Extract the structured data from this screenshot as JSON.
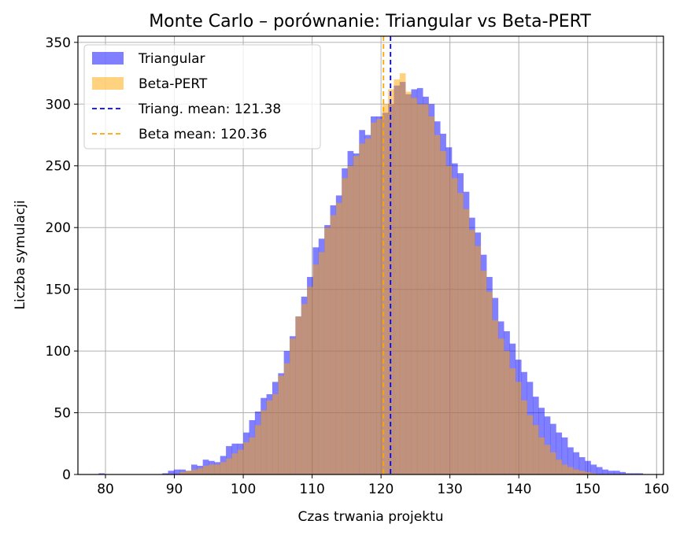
{
  "chart_data": {
    "type": "bar",
    "subtype": "overlaid-histogram",
    "title": "Monte Carlo – porównanie: Triangular vs Beta-PERT",
    "xlabel": "Czas trwania projektu",
    "ylabel": "Liczba symulacji",
    "xlim": [
      76,
      161
    ],
    "ylim": [
      0,
      355
    ],
    "x_ticks": [
      80,
      90,
      100,
      110,
      120,
      130,
      140,
      150,
      160
    ],
    "y_ticks": [
      0,
      50,
      100,
      150,
      200,
      250,
      300,
      350
    ],
    "grid": true,
    "legend_position": "top-left",
    "legend": [
      {
        "label": "Triangular",
        "kind": "patch",
        "color": "#0000ff",
        "alpha": 0.5
      },
      {
        "label": "Beta-PERT",
        "kind": "patch",
        "color": "#ffa500",
        "alpha": 0.5
      },
      {
        "label": "Triang. mean: 121.38",
        "kind": "dashed-line",
        "color": "#0000ff"
      },
      {
        "label": "Beta mean: 120.36",
        "kind": "dashed-line",
        "color": "#ffa500"
      }
    ],
    "series": [
      {
        "name": "Triangular",
        "color": "#0000ff",
        "alpha": 0.5,
        "bin_range": [
          79,
          158
        ],
        "values": [
          1,
          0,
          0,
          0,
          0,
          0,
          0,
          0,
          0,
          0,
          0,
          1,
          3,
          4,
          4,
          3,
          8,
          7,
          12,
          11,
          10,
          15,
          23,
          25,
          25,
          34,
          44,
          51,
          62,
          65,
          75,
          82,
          100,
          112,
          128,
          144,
          160,
          184,
          191,
          202,
          218,
          226,
          248,
          262,
          260,
          279,
          275,
          290,
          290,
          293,
          300,
          315,
          318,
          308,
          312,
          313,
          306,
          300,
          286,
          276,
          265,
          252,
          244,
          229,
          208,
          196,
          178,
          160,
          143,
          124,
          116,
          106,
          93,
          83,
          75,
          63,
          54,
          47,
          41,
          34,
          30,
          22,
          18,
          14,
          11,
          8,
          6,
          4,
          3,
          3,
          2,
          1,
          1,
          1
        ]
      },
      {
        "name": "Beta-PERT",
        "color": "#ffa500",
        "alpha": 0.5,
        "bin_range": [
          79,
          158
        ],
        "values": [
          0,
          0,
          0,
          0,
          0,
          0,
          0,
          0,
          0,
          0,
          0,
          0,
          0,
          0,
          2,
          3,
          4,
          5,
          7,
          8,
          8,
          10,
          13,
          17,
          20,
          26,
          30,
          40,
          52,
          60,
          65,
          80,
          90,
          110,
          128,
          138,
          152,
          170,
          180,
          200,
          210,
          220,
          240,
          250,
          258,
          268,
          272,
          285,
          288,
          300,
          312,
          320,
          325,
          310,
          305,
          300,
          300,
          290,
          275,
          262,
          250,
          240,
          228,
          215,
          198,
          185,
          165,
          148,
          125,
          110,
          100,
          86,
          75,
          60,
          48,
          40,
          30,
          24,
          18,
          12,
          8,
          6,
          4,
          3,
          2,
          1,
          0,
          0,
          0,
          0,
          0,
          0,
          0,
          0
        ]
      }
    ],
    "mean_lines": [
      {
        "name": "Triang. mean",
        "x": 121.38,
        "color": "#0000ff",
        "style": "dashed"
      },
      {
        "name": "Beta mean",
        "x": 120.36,
        "color": "#ffa500",
        "style": "dashed"
      }
    ]
  }
}
